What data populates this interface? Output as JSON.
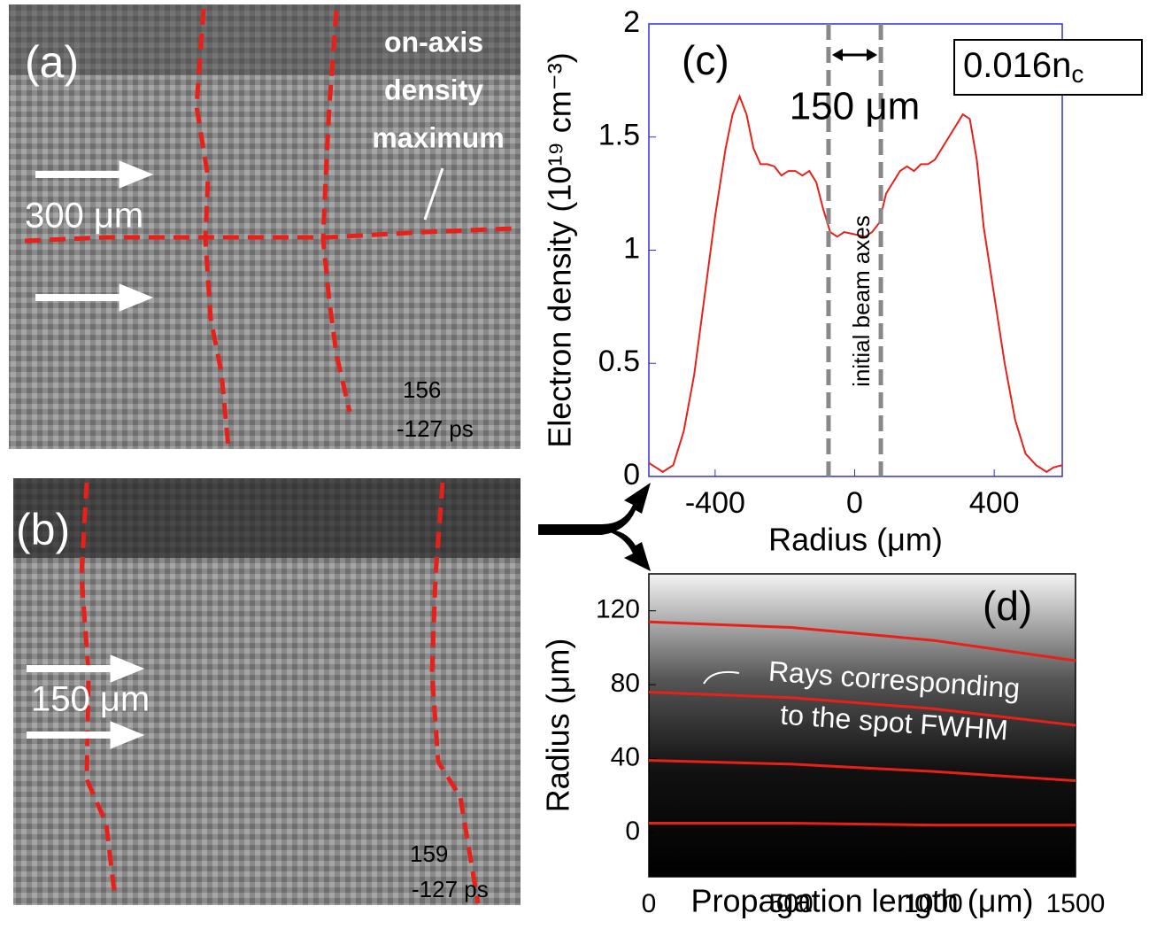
{
  "panels": [
    {
      "label": "(a)",
      "annotation": [
        "on-axis",
        "density",
        "maximum"
      ],
      "scale": "300 μm",
      "frame": "156",
      "time": "-127 ps"
    },
    {
      "label": "(b)",
      "scale": "150 μm",
      "frame": "159",
      "time": "-127 ps"
    }
  ],
  "chart_data": [
    {
      "type": "line",
      "panel": "(c)",
      "xlabel": "Radius (μm)",
      "ylabel": "Electron density (10¹⁹ cm⁻³)",
      "annotations": {
        "width": "150 μm",
        "axes": "initial beam axes",
        "density": "0.016n",
        "density_sub": "c"
      },
      "beam_axes": [
        -75,
        75
      ],
      "xlim": [
        -590,
        595
      ],
      "ylim": [
        0,
        2
      ],
      "xticks": [
        -400,
        0,
        400
      ],
      "yticks": [
        0,
        0.5,
        1,
        1.5,
        2
      ],
      "x": [
        -590,
        -570,
        -550,
        -520,
        -490,
        -460,
        -430,
        -400,
        -370,
        -350,
        -330,
        -310,
        -290,
        -270,
        -250,
        -230,
        -210,
        -190,
        -170,
        -150,
        -130,
        -110,
        -90,
        -70,
        -50,
        -30,
        0,
        30,
        50,
        70,
        90,
        110,
        130,
        150,
        170,
        190,
        210,
        230,
        250,
        270,
        290,
        310,
        330,
        350,
        370,
        400,
        430,
        460,
        490,
        520,
        550,
        570,
        595
      ],
      "series": [
        {
          "color": "#e8201a",
          "values": [
            0.06,
            0.04,
            0.02,
            0.05,
            0.2,
            0.45,
            0.8,
            1.15,
            1.45,
            1.6,
            1.68,
            1.6,
            1.45,
            1.38,
            1.38,
            1.37,
            1.33,
            1.35,
            1.35,
            1.33,
            1.35,
            1.3,
            1.18,
            1.08,
            1.06,
            1.08,
            1.07,
            1.06,
            1.08,
            1.12,
            1.25,
            1.3,
            1.35,
            1.37,
            1.35,
            1.38,
            1.38,
            1.4,
            1.45,
            1.5,
            1.55,
            1.6,
            1.58,
            1.4,
            1.1,
            0.8,
            0.5,
            0.25,
            0.1,
            0.05,
            0.02,
            0.04,
            0.05
          ]
        }
      ]
    },
    {
      "type": "line",
      "panel": "(d)",
      "xlabel": "Propagation length (μm)",
      "ylabel": "Radius (μm)",
      "annotations": {
        "rays": [
          "Rays corresponding",
          "to the spot FWHM"
        ]
      },
      "xlim": [
        0,
        1500
      ],
      "ylim": [
        -24,
        140
      ],
      "xticks": [
        0,
        500,
        1000,
        1500
      ],
      "yticks": [
        0,
        40,
        80,
        120
      ],
      "x": [
        0,
        500,
        1000,
        1500
      ],
      "series": [
        {
          "color": "#e8201a",
          "values": [
            114,
            111,
            104,
            93
          ]
        },
        {
          "color": "#e8201a",
          "values": [
            76,
            73,
            67,
            58
          ]
        },
        {
          "color": "#e8201a",
          "values": [
            39,
            37,
            33,
            28
          ]
        },
        {
          "color": "#e8201a",
          "values": [
            5,
            5,
            4,
            4
          ]
        }
      ]
    }
  ]
}
